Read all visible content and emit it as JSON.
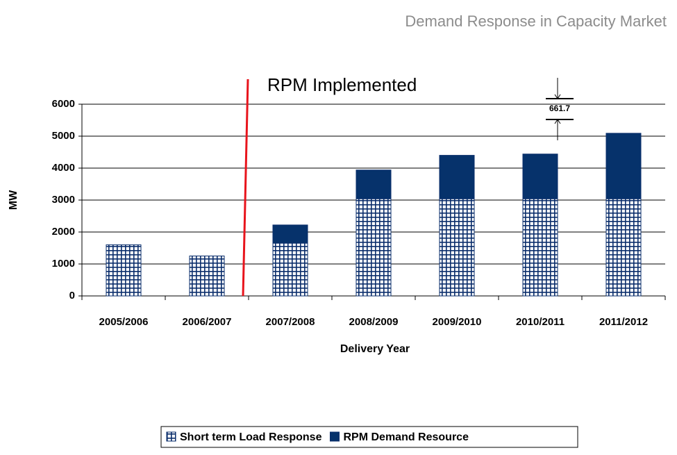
{
  "chart_data": {
    "type": "bar",
    "stacked": true,
    "title": "Demand Response in Capacity Market",
    "annotation": "RPM Implemented",
    "difference_label": "661.7",
    "x_label": "Delivery Year",
    "y_label": "MW",
    "categories": [
      "2005/2006",
      "2006/2007",
      "2007/2008",
      "2008/2009",
      "2009/2010",
      "2010/2011",
      "2011/2012"
    ],
    "series": [
      {
        "name": "Short term Load Response",
        "color": "#0a2d6b",
        "values": [
          1600,
          1250,
          1650,
          3040,
          3040,
          3040,
          3040
        ]
      },
      {
        "name": "RPM Demand Resource",
        "color": "#06326b",
        "values": [
          null,
          null,
          570,
          900,
          1360,
          1400,
          2050
        ]
      }
    ],
    "ylim": [
      0,
      6000
    ],
    "yticks": [
      0,
      1000,
      2000,
      3000,
      4000,
      5000,
      6000
    ],
    "grid": true
  }
}
